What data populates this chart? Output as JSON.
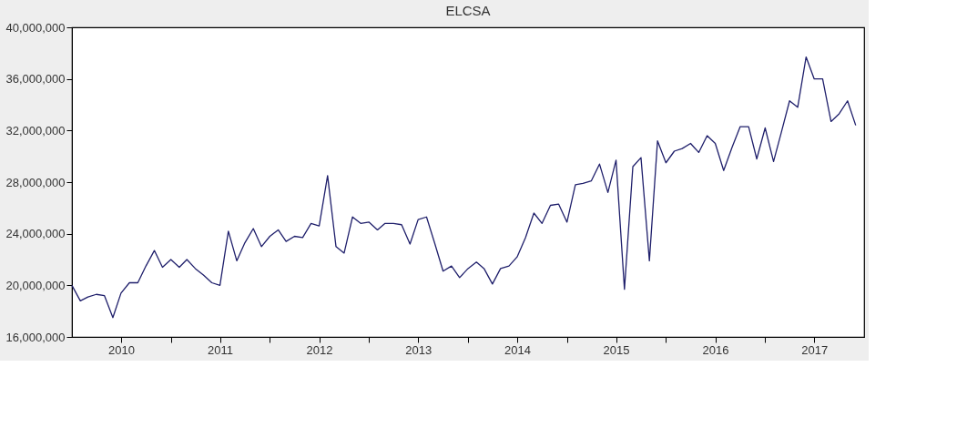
{
  "chart_data": {
    "type": "line",
    "title": "ELCSA",
    "x": [
      "2010-01",
      "2010-02",
      "2010-03",
      "2010-04",
      "2010-05",
      "2010-06",
      "2010-07",
      "2010-08",
      "2010-09",
      "2010-10",
      "2010-11",
      "2010-12",
      "2011-01",
      "2011-02",
      "2011-03",
      "2011-04",
      "2011-05",
      "2011-06",
      "2011-07",
      "2011-08",
      "2011-09",
      "2011-10",
      "2011-11",
      "2011-12",
      "2012-01",
      "2012-02",
      "2012-03",
      "2012-04",
      "2012-05",
      "2012-06",
      "2012-07",
      "2012-08",
      "2012-09",
      "2012-10",
      "2012-11",
      "2012-12",
      "2013-01",
      "2013-02",
      "2013-03",
      "2013-04",
      "2013-05",
      "2013-06",
      "2013-07",
      "2013-08",
      "2013-09",
      "2013-10",
      "2013-11",
      "2013-12",
      "2014-01",
      "2014-02",
      "2014-03",
      "2014-04",
      "2014-05",
      "2014-06",
      "2014-07",
      "2014-08",
      "2014-09",
      "2014-10",
      "2014-11",
      "2014-12",
      "2015-01",
      "2015-02",
      "2015-03",
      "2015-04",
      "2015-05",
      "2015-06",
      "2015-07",
      "2015-08",
      "2015-09",
      "2015-10",
      "2015-11",
      "2015-12",
      "2016-01",
      "2016-02",
      "2016-03",
      "2016-04",
      "2016-05",
      "2016-06",
      "2016-07",
      "2016-08",
      "2016-09",
      "2016-10",
      "2016-11",
      "2016-12",
      "2017-01",
      "2017-02",
      "2017-03",
      "2017-04",
      "2017-05",
      "2017-06",
      "2017-07",
      "2017-08",
      "2017-09",
      "2017-10",
      "2017-11",
      "2017-12"
    ],
    "series": [
      {
        "color": "#1f1f6b",
        "values": [
          20000000,
          18800000,
          19100000,
          19300000,
          19200000,
          17500000,
          19400000,
          20200000,
          20200000,
          21500000,
          22700000,
          21400000,
          22000000,
          21400000,
          22000000,
          21300000,
          20800000,
          20200000,
          20000000,
          24200000,
          21900000,
          23300000,
          24400000,
          23000000,
          23800000,
          24300000,
          23400000,
          23800000,
          23700000,
          24800000,
          24600000,
          28500000,
          23000000,
          22500000,
          25300000,
          24800000,
          24900000,
          24300000,
          24800000,
          24800000,
          24700000,
          23200000,
          25100000,
          25300000,
          23200000,
          21100000,
          21500000,
          20600000,
          21300000,
          21800000,
          21300000,
          20100000,
          21300000,
          21500000,
          22200000,
          23700000,
          25600000,
          24800000,
          26200000,
          26300000,
          24900000,
          27800000,
          27900000,
          28100000,
          29400000,
          27200000,
          29700000,
          19700000,
          29200000,
          29900000,
          21900000,
          31200000,
          29500000,
          30400000,
          30600000,
          31000000,
          30300000,
          31600000,
          31000000,
          28900000,
          30700000,
          32300000,
          32300000,
          29800000,
          32200000,
          29600000,
          31800000,
          34300000,
          33800000,
          37700000,
          36000000,
          36000000,
          32700000,
          33300000,
          34300000,
          32400000
        ]
      }
    ],
    "xlim": [
      "2010-01",
      "2018-01"
    ],
    "xticks": [
      {
        "value": "2010-07",
        "label": "2010"
      },
      {
        "value": "2011-01",
        "label": null
      },
      {
        "value": "2011-07",
        "label": "2011"
      },
      {
        "value": "2012-01",
        "label": null
      },
      {
        "value": "2012-07",
        "label": "2012"
      },
      {
        "value": "2013-01",
        "label": null
      },
      {
        "value": "2013-07",
        "label": "2013"
      },
      {
        "value": "2014-01",
        "label": null
      },
      {
        "value": "2014-07",
        "label": "2014"
      },
      {
        "value": "2015-01",
        "label": null
      },
      {
        "value": "2015-07",
        "label": "2015"
      },
      {
        "value": "2016-01",
        "label": null
      },
      {
        "value": "2016-07",
        "label": "2016"
      },
      {
        "value": "2017-01",
        "label": null
      },
      {
        "value": "2017-07",
        "label": "2017"
      }
    ],
    "ylim": [
      16000000,
      40000000
    ],
    "yticks": [
      {
        "value": 16000000,
        "label": "16,000,000"
      },
      {
        "value": 20000000,
        "label": "20,000,000"
      },
      {
        "value": 24000000,
        "label": "24,000,000"
      },
      {
        "value": 28000000,
        "label": "28,000,000"
      },
      {
        "value": 32000000,
        "label": "32,000,000"
      },
      {
        "value": 36000000,
        "label": "36,000,000"
      },
      {
        "value": 40000000,
        "label": "40,000,000"
      }
    ],
    "grid": false,
    "legend": false,
    "marker": "none",
    "line_style": "solid"
  }
}
